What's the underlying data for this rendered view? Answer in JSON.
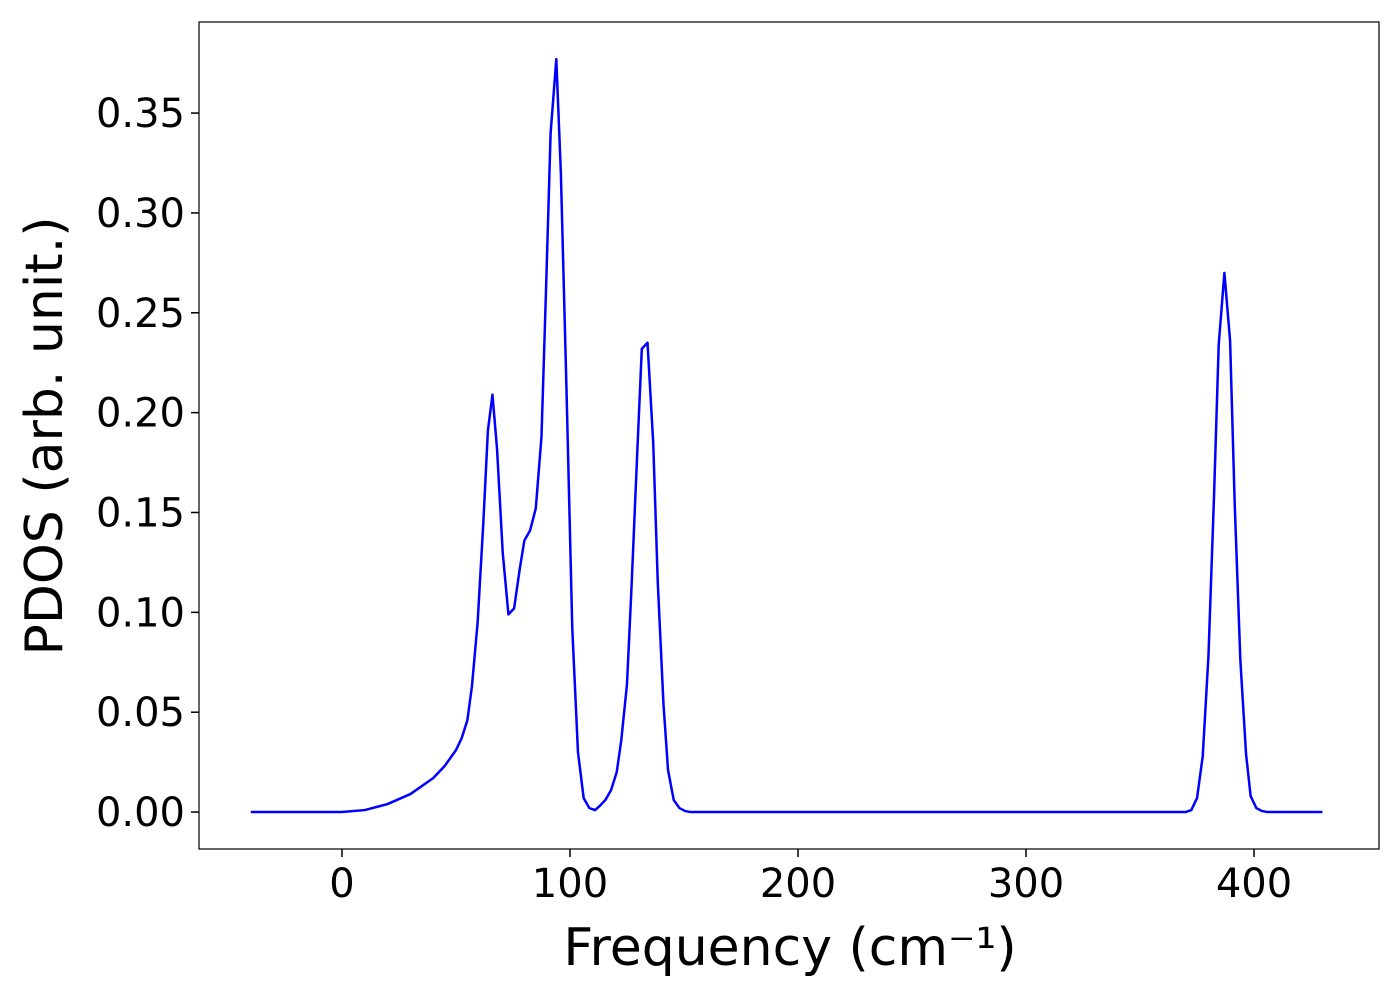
{
  "chart_data": {
    "type": "line",
    "xlabel": "Frequency (cm⁻¹)",
    "ylabel": "PDOS (arb. unit.)",
    "xlim": [
      -62.7,
      454.8
    ],
    "ylim": [
      -0.0185,
      0.3956
    ],
    "xticks": [
      0,
      100,
      200,
      300,
      400
    ],
    "yticks": [
      {
        "value": 0,
        "label": "0.00"
      },
      {
        "value": 0.05,
        "label": "0.05"
      },
      {
        "value": 0.1,
        "label": "0.10"
      },
      {
        "value": 0.15,
        "label": "0.15"
      },
      {
        "value": 0.2,
        "label": "0.20"
      },
      {
        "value": 0.25,
        "label": "0.25"
      },
      {
        "value": 0.3,
        "label": "0.30"
      },
      {
        "value": 0.35,
        "label": "0.35"
      }
    ],
    "grid": false,
    "series": [
      {
        "color": "#0000ff",
        "x": [
          -40,
          -20,
          0,
          10,
          20,
          30,
          40,
          45,
          50,
          52.5,
          55,
          57,
          59.5,
          62,
          64,
          66,
          68,
          70.5,
          73,
          75.5,
          78,
          80,
          82.5,
          85,
          87.5,
          89.5,
          91.5,
          94,
          96,
          98.5,
          101,
          103.5,
          106,
          108.5,
          111,
          113,
          115.5,
          118,
          120.5,
          122.5,
          125,
          127,
          129.5,
          131.5,
          134,
          136.5,
          138.5,
          141,
          143,
          145.5,
          148,
          150.5,
          153,
          200,
          300,
          370,
          372.5,
          375,
          377.5,
          380,
          382.5,
          384.5,
          387,
          389.5,
          391.5,
          394,
          396.5,
          398.5,
          401,
          403.5,
          406,
          430
        ],
        "values": [
          0,
          0,
          0,
          0.001,
          0.004,
          0.009,
          0.017,
          0.023,
          0.031,
          0.037,
          0.046,
          0.063,
          0.095,
          0.145,
          0.191,
          0.209,
          0.182,
          0.13,
          0.099,
          0.102,
          0.122,
          0.136,
          0.141,
          0.152,
          0.188,
          0.262,
          0.34,
          0.377,
          0.32,
          0.21,
          0.092,
          0.03,
          0.007,
          0.002,
          0.001,
          0.003,
          0.006,
          0.011,
          0.02,
          0.036,
          0.064,
          0.113,
          0.18,
          0.232,
          0.235,
          0.185,
          0.115,
          0.054,
          0.021,
          0.006,
          0.002,
          0.0005,
          0,
          0,
          0,
          0,
          0.001,
          0.007,
          0.028,
          0.078,
          0.16,
          0.234,
          0.27,
          0.236,
          0.155,
          0.076,
          0.029,
          0.008,
          0.002,
          0.0005,
          0,
          0
        ]
      }
    ]
  }
}
